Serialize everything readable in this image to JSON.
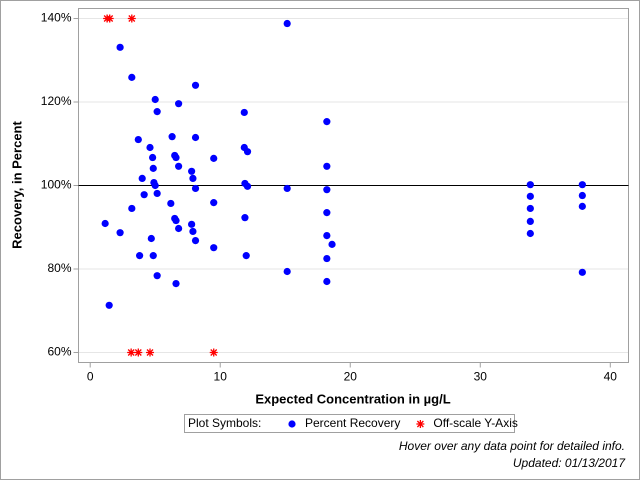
{
  "chart_data": {
    "type": "scatter",
    "xlabel": "Expected Concentration in µg/L",
    "ylabel": "Recovery, in Percent",
    "xlim": [
      -0.9,
      41.4
    ],
    "xticks": [
      0,
      10,
      20,
      30,
      40
    ],
    "ylim": [
      57.6,
      142.4
    ],
    "yticks": [
      {
        "value": 60,
        "label": "60%"
      },
      {
        "value": 80,
        "label": "80%"
      },
      {
        "value": 100,
        "label": "100%"
      },
      {
        "value": 120,
        "label": "120%"
      },
      {
        "value": 140,
        "label": "140%"
      }
    ],
    "grid": true,
    "reference_line": 100,
    "legend_title": "Plot Symbols:",
    "series": [
      {
        "name": "Percent Recovery",
        "color": "#0000ff",
        "marker": "circle",
        "x": [
          1.15,
          1.46,
          2.3,
          2.3,
          3.2,
          3.2,
          3.7,
          3.8,
          4.0,
          4.15,
          4.6,
          4.7,
          4.8,
          4.85,
          4.85,
          4.9,
          5.0,
          5.0,
          5.15,
          5.15,
          5.15,
          6.2,
          6.3,
          6.5,
          6.5,
          6.6,
          6.6,
          6.8,
          6.6,
          6.8,
          6.8,
          7.8,
          7.8,
          7.9,
          7.9,
          8.1,
          8.1,
          8.1,
          8.1,
          9.5,
          9.5,
          9.5,
          11.85,
          11.85,
          11.9,
          12.1,
          12.1,
          11.9,
          12.0,
          15.15,
          15.15,
          15.15,
          18.2,
          18.2,
          18.2,
          18.2,
          18.2,
          18.2,
          18.2,
          18.6,
          33.85,
          33.85,
          33.85,
          33.85,
          33.85,
          37.85,
          37.85,
          37.85,
          37.85
        ],
        "values": [
          90.9,
          71.3,
          88.7,
          133.1,
          125.9,
          94.5,
          111.0,
          83.2,
          101.7,
          97.8,
          109.1,
          87.3,
          106.7,
          104.1,
          83.2,
          100.7,
          100.0,
          120.6,
          117.7,
          98.1,
          78.4,
          95.7,
          111.7,
          92.1,
          107.2,
          106.7,
          91.6,
          89.7,
          76.5,
          119.6,
          104.6,
          103.4,
          90.7,
          101.7,
          89.0,
          124.0,
          111.5,
          99.3,
          86.8,
          106.5,
          95.9,
          85.1,
          117.5,
          109.1,
          100.5,
          108.1,
          99.8,
          92.3,
          83.2,
          138.8,
          99.3,
          79.4,
          115.3,
          104.6,
          99.0,
          93.5,
          88.0,
          82.5,
          77.0,
          85.9,
          100.2,
          97.4,
          94.5,
          91.4,
          88.5,
          100.2,
          97.6,
          95.0,
          79.2
        ]
      },
      {
        "name": "Off-scale Y-Axis",
        "color": "#ff0000",
        "marker": "star",
        "x": [
          1.3,
          1.5,
          3.2,
          3.15,
          3.7,
          4.6,
          9.5
        ],
        "values": [
          140,
          140,
          140,
          60,
          60,
          60,
          60
        ]
      }
    ],
    "footnotes": [
      "Hover over any data point for detailed info.",
      "Updated: 01/13/2017"
    ]
  }
}
